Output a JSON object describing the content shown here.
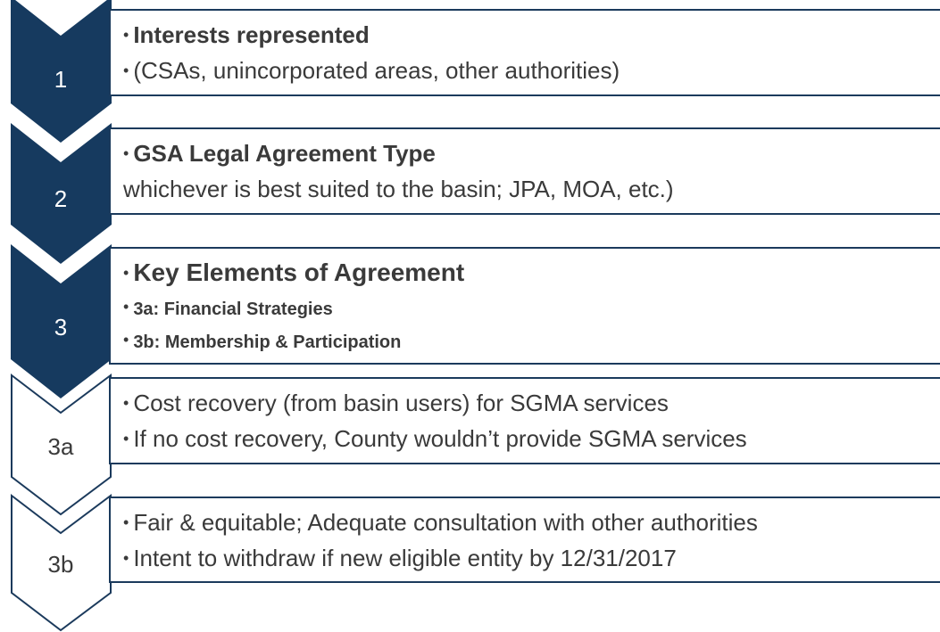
{
  "steps": [
    {
      "label": "1",
      "lines": [
        "Interests represented",
        "(CSAs, unincorporated areas, other authorities)"
      ]
    },
    {
      "label": "2",
      "lines": [
        "GSA Legal Agreement Type",
        "whichever is best suited to the basin; JPA, MOA, etc.)"
      ]
    },
    {
      "label": "3",
      "lines": [
        "Key Elements of Agreement",
        "3a: Financial Strategies",
        "3b: Membership & Participation"
      ]
    },
    {
      "label": "3a",
      "lines": [
        "Cost recovery (from basin users) for SGMA services",
        "If no cost recovery, County wouldn’t provide SGMA services"
      ]
    },
    {
      "label": "3b",
      "lines": [
        "Fair & equitable; Adequate consultation with other authorities",
        "Intent to withdraw if new eligible entity by 12/31/2017"
      ]
    }
  ]
}
